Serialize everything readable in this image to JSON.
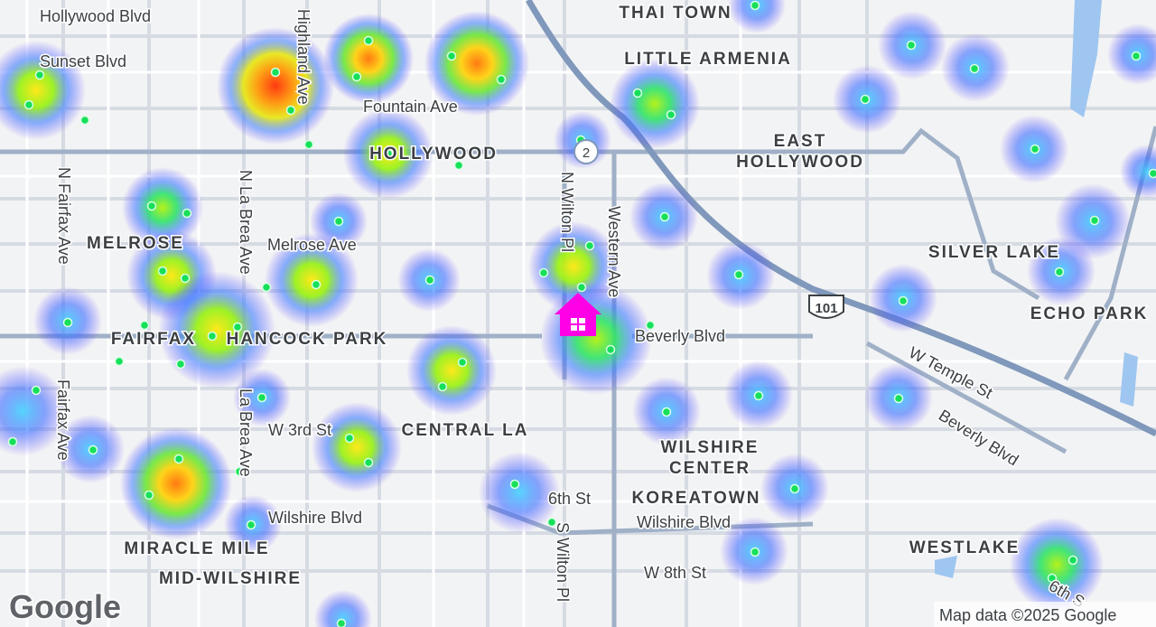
{
  "labels": {
    "hollywood_blvd": "Hollywood Blvd",
    "thai_town": "THAI TOWN",
    "sunset_blvd": "Sunset Blvd",
    "little_armenia": "LITTLE ARMENIA",
    "fountain_ave": "Fountain Ave",
    "hollywood": "HOLLYWOOD",
    "east": "EAST",
    "east_hollywood": "HOLLYWOOD",
    "highland_ave": "Highland Ave",
    "n_fairfax_ave": "N Fairfax Ave",
    "n_la_brea_ave": "N La Brea Ave",
    "n_wilton_pl": "N Wilton Pl",
    "western_ave": "Western Ave",
    "melrose": "MELROSE",
    "melrose_ave": "Melrose Ave",
    "silver_lake": "SILVER LAKE",
    "echo_park": "ECHO PARK",
    "fairfax": "FAIRFAX",
    "hancock_park": "HANCOCK PARK",
    "beverly_blvd": "Beverly Blvd",
    "w_temple_st": "W Temple St",
    "beverly_blvd_2": "Beverly Blvd",
    "fairfax_ave": "Fairfax Ave",
    "la_brea_ave": "La Brea Ave",
    "w_3rd_st": "W 3rd St",
    "central_la": "CENTRAL LA",
    "wilshire": "WILSHIRE",
    "center": "CENTER",
    "koreatown": "KOREATOWN",
    "sixth_st": "6th St",
    "wilshire_blvd": "Wilshire Blvd",
    "wilshire_blvd_2": "Wilshire Blvd",
    "s_wilton_pl": "S Wilton Pl",
    "miracle_mile": "MIRACLE MILE",
    "mid_wilshire": "MID-WILSHIRE",
    "w_8th_st": "W 8th St",
    "westlake": "WESTLAKE",
    "sixth_s": "6th S"
  },
  "shields": {
    "route_2": "2",
    "route_101": "101"
  },
  "logo": "Google",
  "attribution": "Map data ©2025 Google"
}
